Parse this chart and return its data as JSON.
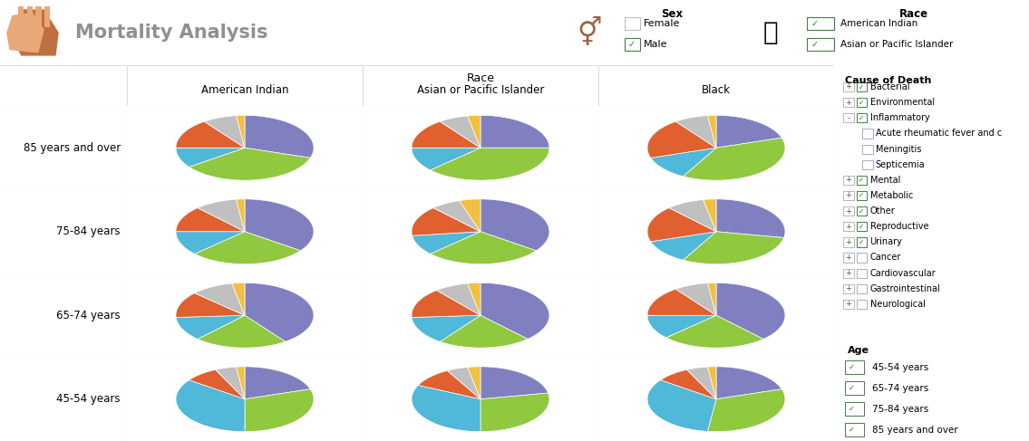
{
  "title": "Mortality Analysis",
  "background_color": "#ffffff",
  "accent_color": "#c8845a",
  "accent_light": "#e8c4a8",
  "row_labels": [
    "85 years and over",
    "75-84 years",
    "65-74 years",
    "45-54 years"
  ],
  "col_labels": [
    "American Indian",
    "Asian or Pacific Islander",
    "Black"
  ],
  "race_header": "Race",
  "pie_data": {
    "85_American_Indian": [
      30,
      35,
      10,
      15,
      8,
      2
    ],
    "85_Asian_Pacific": [
      25,
      38,
      12,
      15,
      7,
      3
    ],
    "85_Black": [
      20,
      38,
      12,
      20,
      8,
      2
    ],
    "75_American_Indian": [
      35,
      28,
      12,
      13,
      10,
      2
    ],
    "75_Asian_Pacific": [
      35,
      28,
      10,
      15,
      7,
      5
    ],
    "75_Black": [
      28,
      30,
      12,
      18,
      9,
      3
    ],
    "65_American_Indian": [
      40,
      22,
      12,
      13,
      10,
      3
    ],
    "65_Asian_Pacific": [
      38,
      22,
      14,
      15,
      8,
      3
    ],
    "65_Black": [
      38,
      25,
      12,
      15,
      8,
      2
    ],
    "45_American_Indian": [
      20,
      30,
      35,
      8,
      5,
      2
    ],
    "45_Asian_Pacific": [
      22,
      28,
      32,
      10,
      5,
      3
    ],
    "45_Black": [
      20,
      32,
      33,
      8,
      5,
      2
    ]
  },
  "pie_colors": [
    "#8080c0",
    "#90c840",
    "#50b8d8",
    "#e06030",
    "#c0c0c0",
    "#f0c040"
  ],
  "sex_panel": {
    "title": "Sex",
    "items": [
      "Female",
      "Male"
    ],
    "checked": [
      false,
      true
    ]
  },
  "race_panel": {
    "title": "Race",
    "items": [
      "American Indian",
      "Asian or Pacific Islander"
    ],
    "checked": [
      true,
      true
    ]
  },
  "cause_panel": {
    "title": "Cause of Death",
    "items": [
      {
        "label": "Bacterial",
        "checked": true,
        "indent": 0,
        "has_expand": true,
        "collapsed": false
      },
      {
        "label": "Environmental",
        "checked": true,
        "indent": 0,
        "has_expand": true,
        "collapsed": false
      },
      {
        "label": "Inflammatory",
        "checked": true,
        "indent": 0,
        "has_expand": true,
        "collapsed": true
      },
      {
        "label": "Acute rheumatic fever and c",
        "checked": false,
        "indent": 1,
        "has_expand": false,
        "collapsed": false
      },
      {
        "label": "Meningitis",
        "checked": false,
        "indent": 1,
        "has_expand": false,
        "collapsed": false
      },
      {
        "label": "Septicemia",
        "checked": false,
        "indent": 1,
        "has_expand": false,
        "collapsed": false
      },
      {
        "label": "Mental",
        "checked": true,
        "indent": 0,
        "has_expand": true,
        "collapsed": false
      },
      {
        "label": "Metabolic",
        "checked": true,
        "indent": 0,
        "has_expand": true,
        "collapsed": false
      },
      {
        "label": "Other",
        "checked": true,
        "indent": 0,
        "has_expand": true,
        "collapsed": false
      },
      {
        "label": "Reproductive",
        "checked": true,
        "indent": 0,
        "has_expand": true,
        "collapsed": false
      },
      {
        "label": "Urinary",
        "checked": true,
        "indent": 0,
        "has_expand": true,
        "collapsed": false
      },
      {
        "label": "Cancer",
        "checked": false,
        "indent": 0,
        "has_expand": true,
        "collapsed": false
      },
      {
        "label": "Cardiovascular",
        "checked": false,
        "indent": 0,
        "has_expand": true,
        "collapsed": false
      },
      {
        "label": "Gastrointestinal",
        "checked": false,
        "indent": 0,
        "has_expand": true,
        "collapsed": false
      },
      {
        "label": "Neurological",
        "checked": false,
        "indent": 0,
        "has_expand": true,
        "collapsed": false
      }
    ]
  },
  "age_panel": {
    "title": "Age",
    "items": [
      "45-54 years",
      "65-74 years",
      "75-84 years",
      "85 years and over"
    ],
    "checked": [
      true,
      true,
      true,
      true
    ]
  }
}
